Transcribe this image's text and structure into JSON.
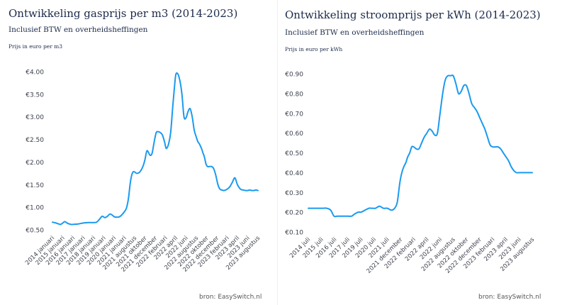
{
  "chart_data": [
    {
      "type": "line",
      "title": "Ontwikkeling gasprijs per m3 (2014-2023)",
      "subtitle": "Inclusief BTW en overheidsheffingen",
      "ylabel": "Prijs in euro per m3",
      "source": "bron: EasySwitch.nl",
      "color": "#1a9af0",
      "grid": false,
      "ylim": [
        0.5,
        4.0
      ],
      "yticks": [
        0.5,
        1.0,
        1.5,
        2.0,
        2.5,
        3.0,
        3.5,
        4.0
      ],
      "ytick_labels": [
        "€0.50",
        "€1.00",
        "€1.50",
        "€2.00",
        "€2.50",
        "€3.00",
        "€3.50",
        "€4.00"
      ],
      "tick_labels": [
        "2014 januari",
        "2015 januari",
        "2016 januari",
        "2017 januari",
        "2018 januari",
        "2019 januari",
        "2020 januari",
        "2021 januari",
        "2021 augustus",
        "2021 oktober",
        "2021 december",
        "2022 februari",
        "2022 april",
        "2022 juni",
        "2022 augustus",
        "2022 oktober",
        "2022 december",
        "2023 februari",
        "2023 april",
        "2023 juni",
        "2023 augustus"
      ],
      "series": [
        {
          "x": [
            0,
            0.35,
            0.6,
            0.8,
            1.0,
            1.2,
            1.5,
            1.8,
            2.0,
            2.5,
            3.0,
            3.5,
            4.0,
            4.3,
            4.6,
            4.85,
            5.1,
            5.35,
            5.6,
            5.85,
            6.0,
            6.3,
            6.6,
            7.0,
            7.2,
            7.4,
            7.55,
            7.7,
            7.85,
            8.0,
            8.2,
            8.5,
            8.8,
            9.0,
            9.2,
            9.5,
            9.7,
            9.9,
            10.1,
            10.3,
            10.5,
            10.7,
            10.9,
            11.0,
            11.1,
            11.3,
            11.5,
            11.7,
            11.85,
            12.0,
            12.2,
            12.4,
            12.6,
            12.8,
            13.0,
            13.2,
            13.4,
            13.6,
            13.8,
            14.0,
            14.15,
            14.3,
            14.5,
            14.65,
            14.8,
            14.95,
            15.1,
            15.3,
            15.5,
            15.7,
            15.9,
            16.1,
            16.3,
            16.5,
            16.7,
            16.85,
            17.0,
            17.25,
            17.5,
            17.75,
            18.0,
            18.3,
            18.6,
            18.8,
            19.0,
            19.2,
            19.4,
            19.6,
            19.8,
            20.0
          ],
          "y": [
            0.67,
            0.65,
            0.63,
            0.62,
            0.65,
            0.68,
            0.64,
            0.62,
            0.62,
            0.63,
            0.65,
            0.66,
            0.66,
            0.67,
            0.74,
            0.8,
            0.77,
            0.8,
            0.85,
            0.82,
            0.79,
            0.78,
            0.8,
            0.9,
            0.98,
            1.2,
            1.5,
            1.7,
            1.78,
            1.78,
            1.75,
            1.78,
            1.9,
            2.05,
            2.25,
            2.15,
            2.2,
            2.45,
            2.65,
            2.67,
            2.65,
            2.6,
            2.45,
            2.35,
            2.3,
            2.4,
            2.65,
            3.2,
            3.6,
            3.93,
            3.95,
            3.8,
            3.5,
            3.0,
            2.98,
            3.12,
            3.18,
            3.0,
            2.7,
            2.55,
            2.45,
            2.4,
            2.3,
            2.2,
            2.1,
            1.95,
            1.9,
            1.9,
            1.9,
            1.85,
            1.7,
            1.5,
            1.4,
            1.38,
            1.37,
            1.38,
            1.4,
            1.45,
            1.55,
            1.65,
            1.5,
            1.4,
            1.38,
            1.37,
            1.37,
            1.38,
            1.37,
            1.37,
            1.38,
            1.37
          ]
        }
      ]
    },
    {
      "type": "line",
      "title": "Ontwikkeling stroomprijs per kWh (2014-2023)",
      "subtitle": "Inclusief BTW en overheidsheffingen",
      "ylabel": "Prijs in euro per kWh",
      "source": "bron: EasySwitch.nl",
      "color": "#1a9af0",
      "grid": false,
      "ylim": [
        0.1,
        0.9
      ],
      "yticks": [
        0.1,
        0.2,
        0.3,
        0.4,
        0.5,
        0.6,
        0.7,
        0.8,
        0.9
      ],
      "ytick_labels": [
        "€0.10",
        "€0.20",
        "€0.30",
        "€0.40",
        "€0.50",
        "€0.60",
        "€0.70",
        "€0.80",
        "€0.90"
      ],
      "tick_labels": [
        "2014 juli",
        "2015 juli",
        "2016 juli",
        "2017 juli",
        "2019 juli",
        "2020 juli",
        "2021 juli",
        "2021 december",
        "2022 februari",
        "2022 april",
        "2022 juni",
        "2022 augustus",
        "2022 oktober",
        "2022 december",
        "2023 februari",
        "2023 april",
        "2023 juni",
        "2023 augustus"
      ],
      "series": [
        {
          "x": [
            0,
            0.4,
            0.8,
            1.1,
            1.4,
            1.7,
            1.95,
            2.2,
            2.6,
            3.0,
            3.3,
            3.5,
            3.8,
            4.0,
            4.3,
            4.6,
            4.8,
            5.1,
            5.4,
            5.7,
            6.0,
            6.3,
            6.55,
            6.75,
            6.95,
            7.1,
            7.25,
            7.4,
            7.55,
            7.7,
            7.85,
            8.0,
            8.2,
            8.4,
            8.6,
            8.8,
            9.0,
            9.2,
            9.4,
            9.6,
            9.8,
            10.0,
            10.2,
            10.4,
            10.6,
            10.8,
            11.0,
            11.2,
            11.4,
            11.6,
            11.8,
            12.0,
            12.2,
            12.4,
            12.6,
            12.8,
            13.0,
            13.2,
            13.4,
            13.6,
            13.8,
            14.0,
            14.2,
            14.4,
            14.6,
            14.8,
            15.0,
            15.2,
            15.4,
            15.6,
            15.8,
            16.0,
            16.2,
            16.4,
            16.6,
            16.8,
            17.0
          ],
          "y": [
            0.22,
            0.22,
            0.22,
            0.22,
            0.22,
            0.21,
            0.18,
            0.18,
            0.18,
            0.18,
            0.18,
            0.19,
            0.2,
            0.2,
            0.21,
            0.22,
            0.22,
            0.22,
            0.23,
            0.22,
            0.22,
            0.21,
            0.22,
            0.25,
            0.35,
            0.4,
            0.43,
            0.45,
            0.48,
            0.5,
            0.53,
            0.53,
            0.52,
            0.52,
            0.55,
            0.58,
            0.6,
            0.62,
            0.61,
            0.59,
            0.6,
            0.7,
            0.8,
            0.87,
            0.89,
            0.89,
            0.89,
            0.85,
            0.8,
            0.81,
            0.84,
            0.84,
            0.8,
            0.75,
            0.73,
            0.71,
            0.68,
            0.65,
            0.62,
            0.58,
            0.54,
            0.53,
            0.53,
            0.53,
            0.52,
            0.5,
            0.48,
            0.46,
            0.43,
            0.41,
            0.4,
            0.4,
            0.4,
            0.4,
            0.4,
            0.4,
            0.4
          ]
        }
      ]
    }
  ]
}
